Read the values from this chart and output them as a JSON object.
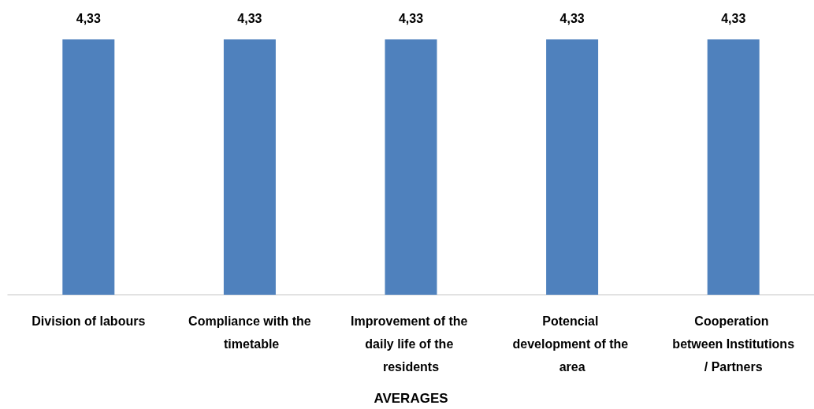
{
  "chart_data": {
    "type": "bar",
    "xlabel": "AVERAGES",
    "categories": [
      "Division of labours",
      "Compliance with the timetable",
      "Improvement of the daily life of the residents",
      "Potencial development of the area",
      "Cooperation between Institutions/ Partners"
    ],
    "values": [
      4.33,
      4.33,
      4.33,
      4.33,
      4.33
    ],
    "color": "#4f81bd",
    "value_labels": [
      "4,33",
      "4,33",
      "4,33",
      "4,33",
      "4,33"
    ]
  }
}
